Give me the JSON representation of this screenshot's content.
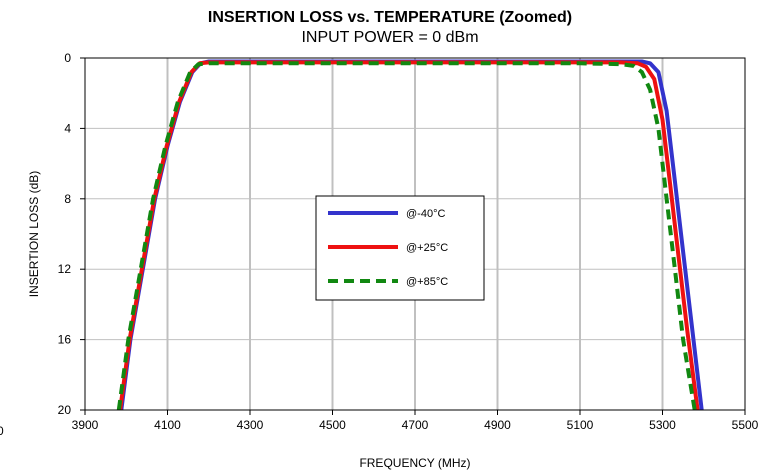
{
  "chart_data": {
    "type": "line",
    "title": "INSERTION LOSS vs. TEMPERATURE (Zoomed)",
    "subtitle": "INPUT POWER = 0 dBm",
    "xlabel": "FREQUENCY (MHz)",
    "ylabel": "INSERTION LOSS (dB)",
    "xlim": [
      3900,
      5500
    ],
    "ylim": [
      0,
      20
    ],
    "y_inverted": true,
    "grid": true,
    "legend_position": "center",
    "x_ticks": [
      "3900",
      "4100",
      "4300",
      "4500",
      "4700",
      "4900",
      "5100",
      "5300",
      "5500"
    ],
    "y_ticks": [
      "0",
      "4",
      "8",
      "12",
      "16",
      "20"
    ],
    "stray_label": "0",
    "series": [
      {
        "name": "@-40°C",
        "color": "#3333cc",
        "dash": "solid",
        "x": [
          3988,
          4010,
          4040,
          4070,
          4100,
          4130,
          4160,
          4180,
          4200,
          4300,
          4500,
          4700,
          4900,
          5100,
          5200,
          5250,
          5270,
          5290,
          5310,
          5330,
          5350,
          5370,
          5395
        ],
        "y": [
          20,
          16,
          12,
          8,
          5,
          2.5,
          0.8,
          0.3,
          0.2,
          0.2,
          0.2,
          0.2,
          0.2,
          0.2,
          0.2,
          0.2,
          0.3,
          0.8,
          3,
          7,
          11,
          15,
          20
        ]
      },
      {
        "name": "@+25°C",
        "color": "#ee1111",
        "dash": "solid",
        "x": [
          3985,
          4008,
          4038,
          4068,
          4098,
          4128,
          4158,
          4178,
          4200,
          4300,
          4500,
          4700,
          4900,
          5100,
          5200,
          5240,
          5260,
          5280,
          5300,
          5320,
          5340,
          5360,
          5385
        ],
        "y": [
          20,
          16,
          12,
          8,
          5,
          2.5,
          0.8,
          0.3,
          0.25,
          0.25,
          0.25,
          0.25,
          0.25,
          0.25,
          0.25,
          0.3,
          0.5,
          1.2,
          3.5,
          7.5,
          11.5,
          15.5,
          20
        ]
      },
      {
        "name": "@+85°C",
        "color": "#118811",
        "dash": "dashed",
        "x": [
          3982,
          4005,
          4035,
          4065,
          4095,
          4125,
          4155,
          4175,
          4200,
          4300,
          4500,
          4700,
          4900,
          5100,
          5200,
          5230,
          5250,
          5270,
          5290,
          5310,
          5330,
          5350,
          5378
        ],
        "y": [
          20,
          16,
          12,
          8,
          5,
          2.5,
          0.8,
          0.35,
          0.3,
          0.3,
          0.3,
          0.3,
          0.3,
          0.3,
          0.35,
          0.45,
          0.8,
          1.8,
          4,
          8,
          12,
          16,
          20
        ]
      }
    ]
  }
}
